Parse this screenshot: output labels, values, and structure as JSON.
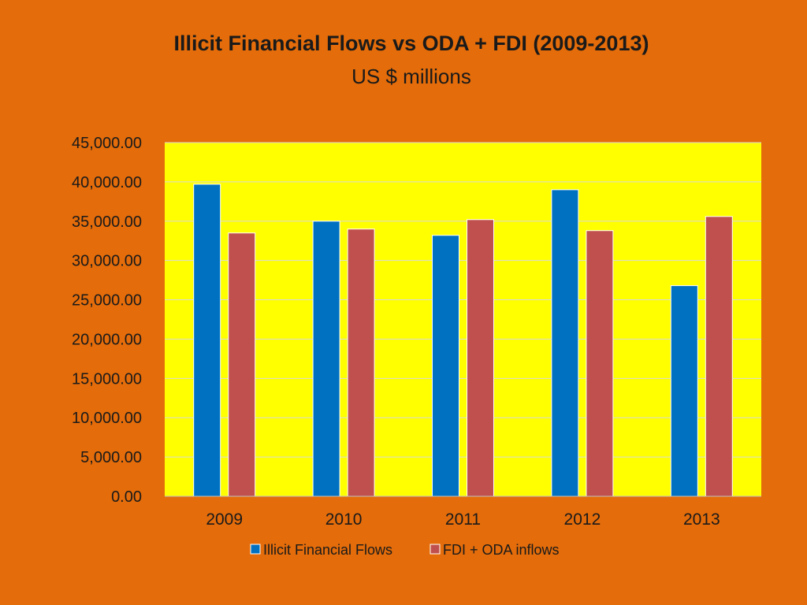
{
  "chart_data": {
    "type": "bar",
    "title": "Illicit Financial Flows vs ODA + FDI (2009-2013)",
    "subtitle": "US $ millions",
    "categories": [
      "2009",
      "2010",
      "2011",
      "2012",
      "2013"
    ],
    "series": [
      {
        "name": "Illicit Financial Flows",
        "color": "#0070C0",
        "values": [
          39700,
          35000,
          33200,
          39000,
          26800
        ]
      },
      {
        "name": "FDI + ODA inflows",
        "color": "#C0504D",
        "values": [
          33500,
          34000,
          35200,
          33800,
          35600
        ]
      }
    ],
    "ylim": [
      0,
      45000
    ],
    "yticks": [
      "0.00",
      "5,000.00",
      "10,000.00",
      "15,000.00",
      "20,000.00",
      "25,000.00",
      "30,000.00",
      "35,000.00",
      "40,000.00",
      "45,000.00"
    ],
    "grid": true,
    "legend": "bottom",
    "plot_background": "#FFFF00",
    "page_background": "#E46C0A"
  }
}
